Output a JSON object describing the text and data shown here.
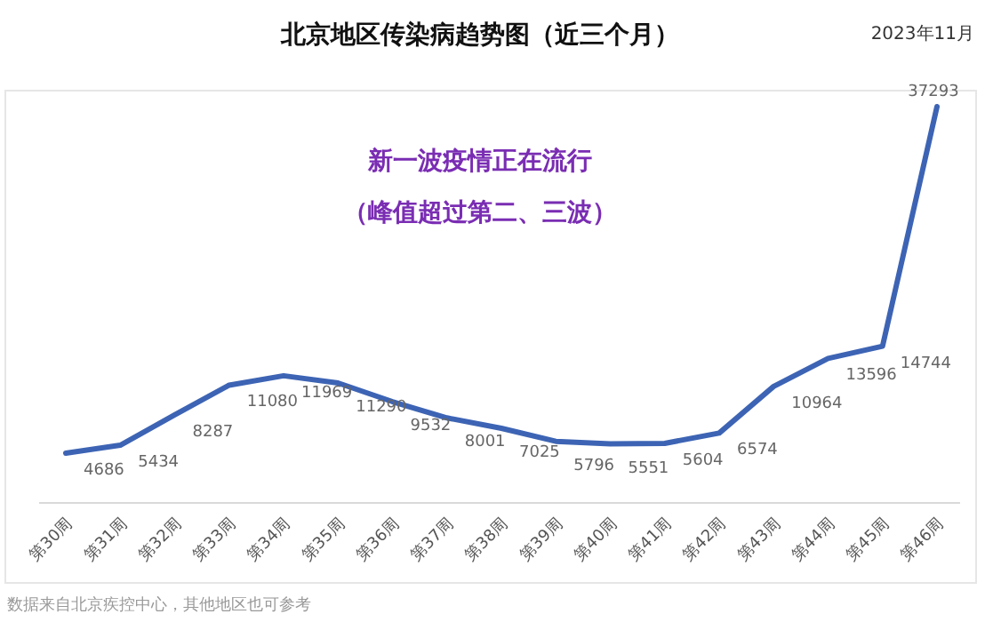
{
  "chart_data": {
    "type": "line",
    "title": "北京地区传染病趋势图（近三个月）",
    "categories": [
      "第30周",
      "第31周",
      "第32周",
      "第33周",
      "第34周",
      "第35周",
      "第36周",
      "第37周",
      "第38周",
      "第39周",
      "第40周",
      "第41周",
      "第42周",
      "第43周",
      "第44周",
      "第45周",
      "第46周"
    ],
    "series": [
      {
        "color": "#3d64b4",
        "values": [
          4686,
          5434,
          8287,
          11080,
          11969,
          11290,
          9532,
          8001,
          7025,
          5796,
          5551,
          5604,
          6574,
          10964,
          13596,
          14744,
          37293
        ]
      }
    ],
    "data_labels": true,
    "marker": "none",
    "line_style": "solid",
    "annotations": [
      "2023年11月",
      "新一波疫情正在流行",
      "（峰值超过第二、三波）",
      "数据来自北京疾控中心，其他地区也可参考"
    ]
  }
}
